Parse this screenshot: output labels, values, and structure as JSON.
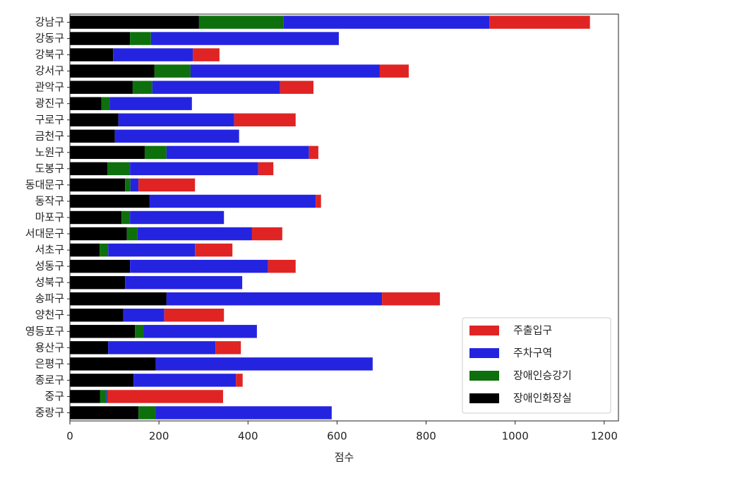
{
  "chart_data": {
    "type": "stacked-barh",
    "x_label": "점수",
    "categories": [
      "강남구",
      "강동구",
      "강북구",
      "강서구",
      "관악구",
      "광진구",
      "구로구",
      "금천구",
      "노원구",
      "도봉구",
      "동대문구",
      "동작구",
      "마포구",
      "서대문구",
      "서초구",
      "성동구",
      "성북구",
      "송파구",
      "양천구",
      "영등포구",
      "용산구",
      "은평구",
      "종로구",
      "중구",
      "중랑구"
    ],
    "series": [
      {
        "name": "주출입구",
        "color": "#e02424",
        "values": [
          226,
          0,
          60,
          65,
          75,
          0,
          138,
          0,
          21,
          34,
          127,
          12,
          0,
          68,
          84,
          62,
          0,
          130,
          134,
          0,
          57,
          0,
          15,
          260,
          0
        ]
      },
      {
        "name": "주차구역",
        "color": "#2424e0",
        "values": [
          462,
          422,
          179,
          425,
          287,
          185,
          260,
          279,
          320,
          288,
          18,
          373,
          211,
          257,
          195,
          310,
          263,
          484,
          92,
          255,
          241,
          487,
          230,
          2,
          396
        ]
      },
      {
        "name": "장애인승강기",
        "color": "#0d700d",
        "values": [
          190,
          47,
          0,
          81,
          44,
          18,
          0,
          0,
          49,
          51,
          12,
          0,
          19,
          24,
          19,
          0,
          0,
          0,
          0,
          19,
          0,
          0,
          0,
          14,
          38
        ]
      },
      {
        "name": "장애인화장실",
        "color": "#000000",
        "values": [
          290,
          135,
          97,
          190,
          141,
          71,
          109,
          101,
          168,
          84,
          124,
          179,
          116,
          128,
          67,
          135,
          124,
          217,
          120,
          146,
          86,
          193,
          143,
          68,
          154
        ]
      }
    ],
    "xlim": [
      0,
      1232
    ],
    "xticks": [
      0,
      200,
      400,
      600,
      800,
      1000,
      1200
    ],
    "legend": "lower right"
  }
}
